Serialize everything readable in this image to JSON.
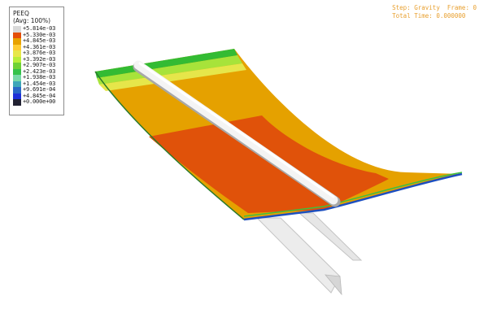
{
  "legend": {
    "title": "PEEQ",
    "subtitle": "(Avg: 100%)",
    "entries": [
      {
        "value": "+5.814e-03",
        "color": "#d9d9d9"
      },
      {
        "value": "+5.330e-03",
        "color": "#e44f0a"
      },
      {
        "value": "+4.845e-03",
        "color": "#e8a200"
      },
      {
        "value": "+4.361e-03",
        "color": "#ffcc33"
      },
      {
        "value": "+3.876e-03",
        "color": "#e7e74a"
      },
      {
        "value": "+3.392e-03",
        "color": "#b8ee3a"
      },
      {
        "value": "+2.907e-03",
        "color": "#6fd236"
      },
      {
        "value": "+2.423e-03",
        "color": "#35c24a"
      },
      {
        "value": "+1.938e-03",
        "color": "#78d8a8"
      },
      {
        "value": "+1.454e-03",
        "color": "#3ea6b8"
      },
      {
        "value": "+9.691e-04",
        "color": "#2a68c6"
      },
      {
        "value": "+4.845e-04",
        "color": "#1f30d8"
      },
      {
        "value": "+0.000e+00",
        "color": "#222233"
      }
    ]
  },
  "status": {
    "step_line": "Step: Gravity  Frame: 0",
    "time_line": "Total Time: 0.000000"
  }
}
